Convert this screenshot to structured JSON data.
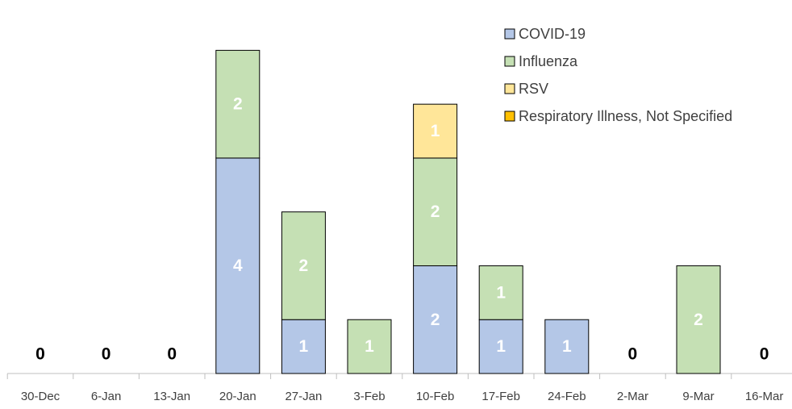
{
  "chart_data": {
    "type": "stacked_bar",
    "categories": [
      "30-Dec",
      "6-Jan",
      "13-Jan",
      "20-Jan",
      "27-Jan",
      "3-Feb",
      "10-Feb",
      "17-Feb",
      "24-Feb",
      "2-Mar",
      "9-Mar",
      "16-Mar"
    ],
    "series": [
      {
        "name": "COVID-19",
        "color": "#b4c7e7",
        "values": [
          0,
          0,
          0,
          4,
          1,
          0,
          2,
          1,
          1,
          0,
          0,
          0
        ]
      },
      {
        "name": "Influenza",
        "color": "#c5e0b4",
        "values": [
          0,
          0,
          0,
          2,
          2,
          1,
          2,
          1,
          0,
          0,
          2,
          0
        ]
      },
      {
        "name": "RSV",
        "color": "#ffe699",
        "values": [
          0,
          0,
          0,
          0,
          0,
          0,
          1,
          0,
          0,
          0,
          0,
          0
        ]
      },
      {
        "name": "Respiratory Illness, Not Specified",
        "color": "#ffc000",
        "values": [
          0,
          0,
          0,
          0,
          0,
          0,
          0,
          0,
          0,
          0,
          0,
          0
        ]
      }
    ],
    "ylim": [
      0,
      6.5
    ],
    "legend": "top-right"
  }
}
